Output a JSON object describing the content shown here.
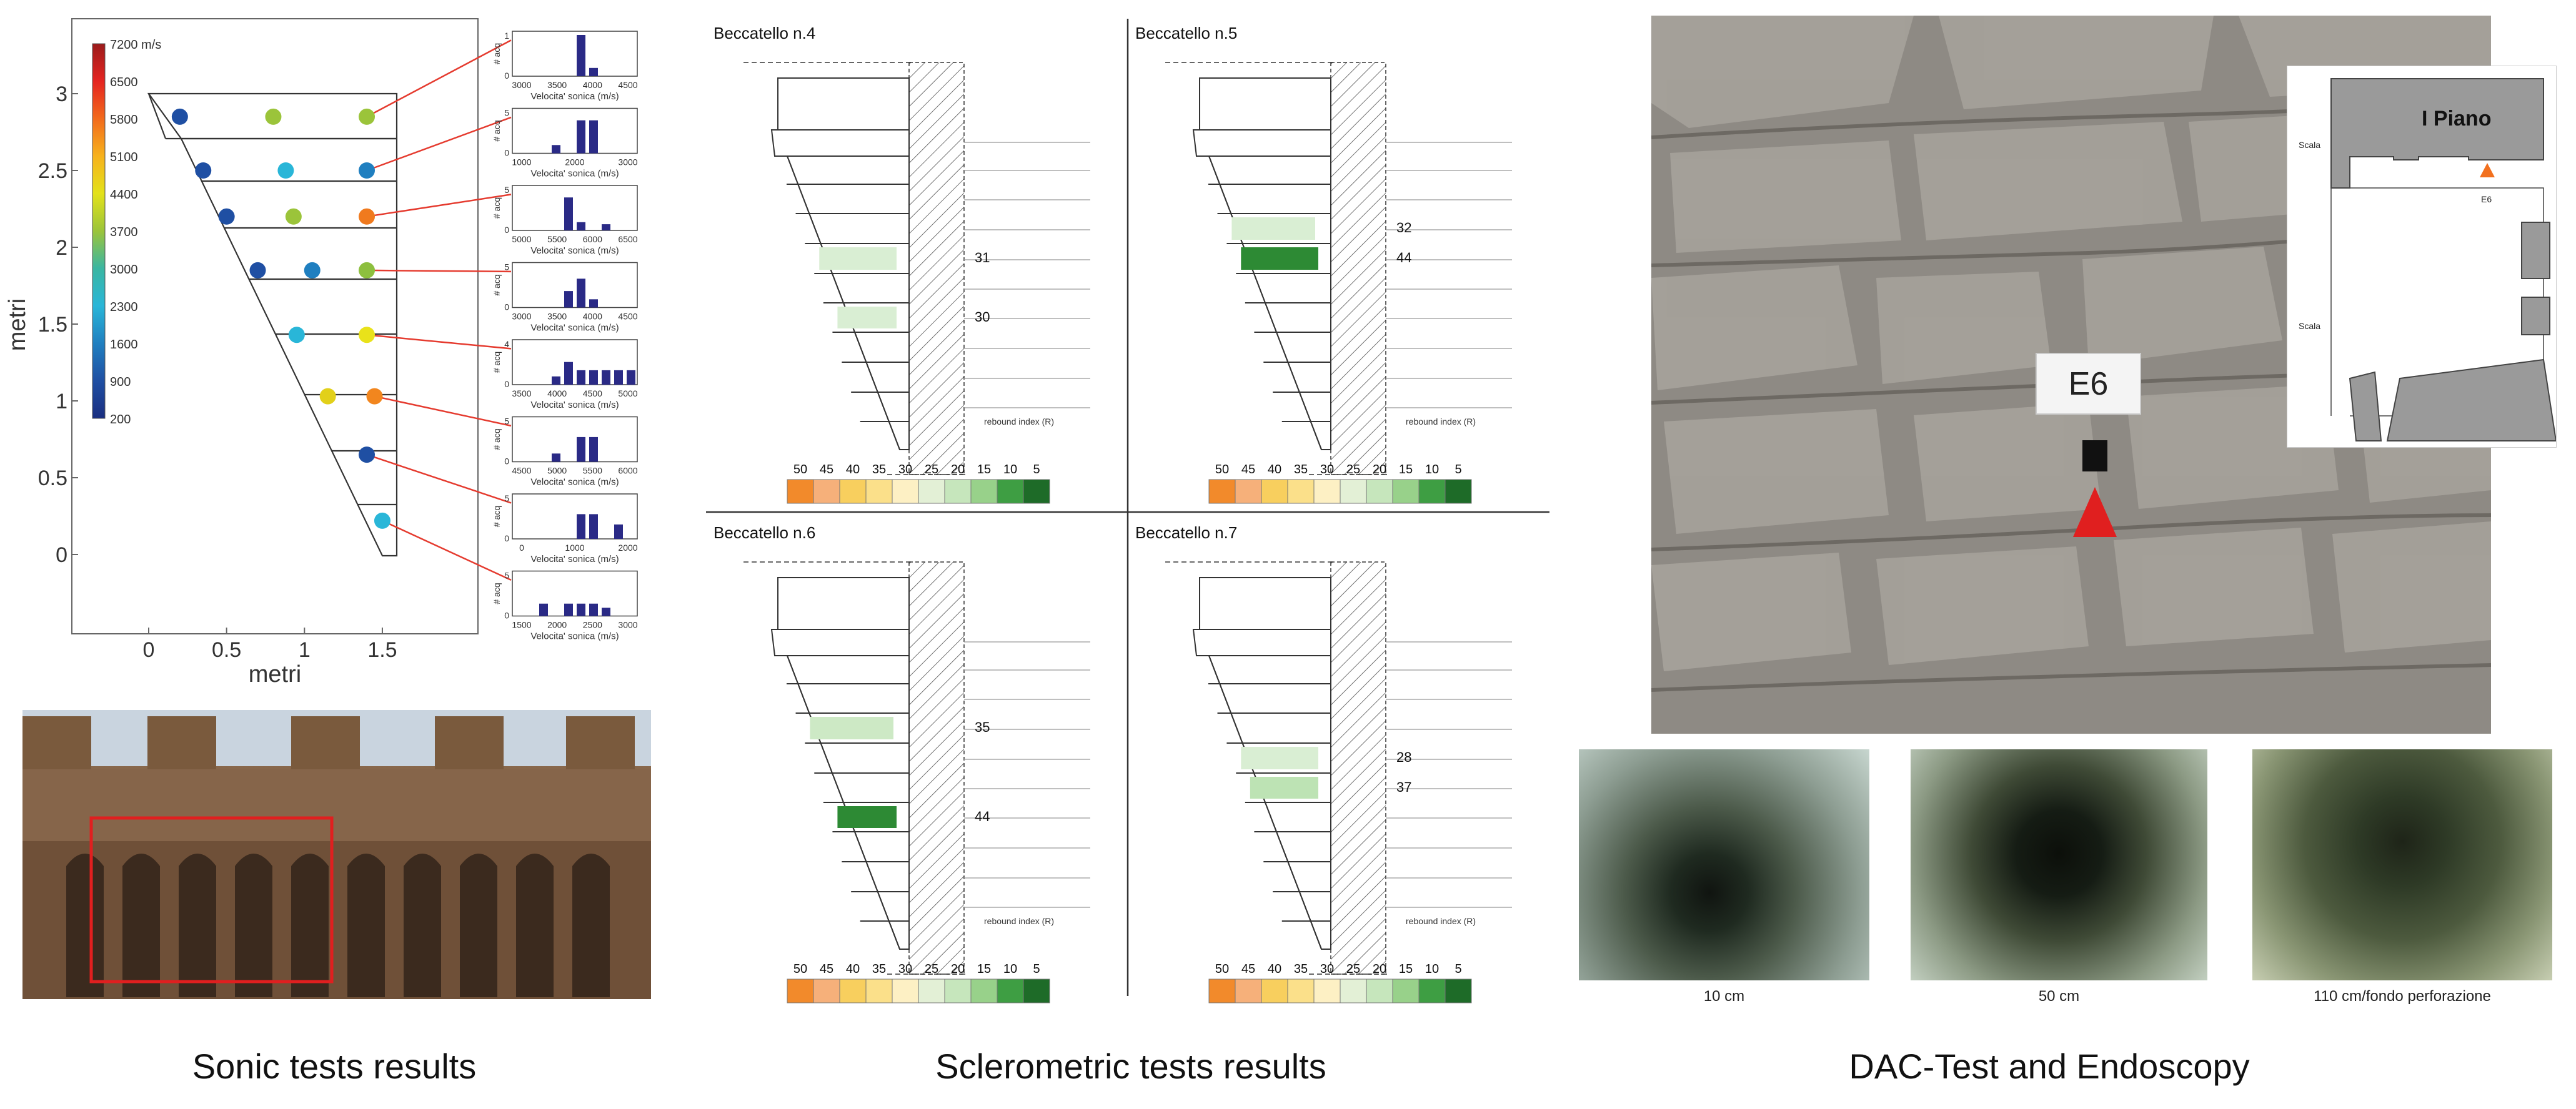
{
  "captions": {
    "sonic": "Sonic tests results",
    "sclerometric": "Sclerometric tests results",
    "dac": "DAC-Test and Endoscopy"
  },
  "sonic_chart": {
    "xlabel": "metri",
    "ylabel": "metri",
    "x_ticks": [
      "0",
      "0.5",
      "1",
      "1.5"
    ],
    "y_ticks": [
      "0",
      "0.5",
      "1",
      "1.5",
      "2",
      "2.5",
      "3"
    ],
    "colorbar_labels": [
      "7200 m/s",
      "6500",
      "5800",
      "5100",
      "4400",
      "3700",
      "3000",
      "2300",
      "1600",
      "900",
      "200"
    ],
    "points": [
      {
        "x": 0.2,
        "y": 2.85,
        "color": "#1f4fa3"
      },
      {
        "x": 0.8,
        "y": 2.85,
        "color": "#9bc43a"
      },
      {
        "x": 1.4,
        "y": 2.85,
        "color": "#9bc43a"
      },
      {
        "x": 0.35,
        "y": 2.5,
        "color": "#1f4fa3"
      },
      {
        "x": 0.88,
        "y": 2.5,
        "color": "#29b6d8"
      },
      {
        "x": 1.4,
        "y": 2.5,
        "color": "#1f7fc0"
      },
      {
        "x": 0.5,
        "y": 2.2,
        "color": "#1f4fa3"
      },
      {
        "x": 0.93,
        "y": 2.2,
        "color": "#9bc43a"
      },
      {
        "x": 1.4,
        "y": 2.2,
        "color": "#f07a1e"
      },
      {
        "x": 0.7,
        "y": 1.85,
        "color": "#1f4fa3"
      },
      {
        "x": 1.05,
        "y": 1.85,
        "color": "#1f7fc0"
      },
      {
        "x": 1.4,
        "y": 1.85,
        "color": "#8dbf3e"
      },
      {
        "x": 0.95,
        "y": 1.43,
        "color": "#29b6d8"
      },
      {
        "x": 1.4,
        "y": 1.43,
        "color": "#e9e21a"
      },
      {
        "x": 1.15,
        "y": 1.03,
        "color": "#e2d01a"
      },
      {
        "x": 1.45,
        "y": 1.03,
        "color": "#f2861e"
      },
      {
        "x": 1.4,
        "y": 0.65,
        "color": "#1f4fa3"
      },
      {
        "x": 1.5,
        "y": 0.22,
        "color": "#29b6d8"
      }
    ],
    "histograms": [
      {
        "ticks": [
          "3000",
          "3500",
          "4000",
          "4500"
        ],
        "ymax": "1",
        "ylabel": "# acq",
        "xlabel": "Velocita' sonica (m/s)",
        "bars": [
          0,
          0,
          0,
          0,
          0,
          1,
          0.2,
          0,
          0,
          0
        ]
      },
      {
        "ticks": [
          "1000",
          "2000",
          "3000"
        ],
        "ymax": "5",
        "ylabel": "# acq",
        "xlabel": "Velocita' sonica (m/s)",
        "bars": [
          0,
          0,
          0,
          0.2,
          0,
          0.8,
          0.8,
          0,
          0,
          0
        ]
      },
      {
        "ticks": [
          "5000",
          "5500",
          "6000",
          "6500"
        ],
        "ymax": "5",
        "ylabel": "# acq",
        "xlabel": "Velocita' sonica (m/s)",
        "bars": [
          0,
          0,
          0,
          0,
          0.8,
          0.2,
          0,
          0.15,
          0,
          0
        ]
      },
      {
        "ticks": [
          "3000",
          "3500",
          "4000",
          "4500"
        ],
        "ymax": "5",
        "ylabel": "# acq",
        "xlabel": "Velocita' sonica (m/s)",
        "bars": [
          0,
          0,
          0,
          0,
          0.4,
          0.7,
          0.2,
          0,
          0,
          0
        ]
      },
      {
        "ticks": [
          "3500",
          "4000",
          "4500",
          "5000"
        ],
        "ymax": "4",
        "ylabel": "# acq",
        "xlabel": "Velocita' sonica (m/s)",
        "bars": [
          0,
          0,
          0,
          0.2,
          0.55,
          0.35,
          0.35,
          0.35,
          0.35,
          0.35
        ]
      },
      {
        "ticks": [
          "4500",
          "5000",
          "5500",
          "6000"
        ],
        "ymax": "5",
        "ylabel": "# acq",
        "xlabel": "Velocita' sonica (m/s)",
        "bars": [
          0,
          0,
          0,
          0.2,
          0,
          0.6,
          0.6,
          0,
          0,
          0
        ]
      },
      {
        "ticks": [
          "0",
          "1000",
          "2000"
        ],
        "ymax": "5",
        "ylabel": "# acq",
        "xlabel": "Velocita' sonica (m/s)",
        "bars": [
          0,
          0,
          0,
          0,
          0,
          0.6,
          0.6,
          0,
          0.35,
          0
        ]
      },
      {
        "ticks": [
          "1500",
          "2000",
          "2500",
          "3000"
        ],
        "ymax": "5",
        "ylabel": "# acq",
        "xlabel": "Velocita' sonica (m/s)",
        "bars": [
          0,
          0,
          0.3,
          0,
          0.3,
          0.3,
          0.3,
          0.2,
          0,
          0
        ]
      }
    ],
    "colors": {
      "colorbar": [
        "#9b1b1b",
        "#e52420",
        "#f26a1c",
        "#f7b21c",
        "#e3e21a",
        "#9bc43a",
        "#3ab6a2",
        "#29b6d8",
        "#1f7fc0",
        "#1f4fa3",
        "#1a2e80"
      ],
      "hist_bar": "#2a2a86",
      "leader": "#e53b2f"
    }
  },
  "sclerometric": {
    "panels": [
      {
        "title": "Beccatello n.4",
        "values": [
          "31",
          "30"
        ],
        "rebound": "rebound index (R)",
        "cells": [
          {
            "row": 4,
            "shade": "#d9eed3"
          },
          {
            "row": 6,
            "shade": "#d9eed3"
          }
        ]
      },
      {
        "title": "Beccatello n.5",
        "values": [
          "32",
          "44"
        ],
        "rebound": "rebound index (R)",
        "cells": [
          {
            "row": 3,
            "shade": "#d9eed3"
          },
          {
            "row": 4,
            "shade": "#2d8a34"
          }
        ]
      },
      {
        "title": "Beccatello n.6",
        "values": [
          "35",
          "44"
        ],
        "rebound": "rebound index (R)",
        "cells": [
          {
            "row": 3,
            "shade": "#cde9c5"
          },
          {
            "row": 6,
            "shade": "#2d8a34"
          }
        ]
      },
      {
        "title": "Beccatello n.7",
        "values": [
          "28",
          "37"
        ],
        "rebound": "rebound index (R)",
        "cells": [
          {
            "row": 4,
            "shade": "#d9eed3"
          },
          {
            "row": 5,
            "shade": "#bde3b4"
          }
        ]
      }
    ],
    "scale_labels": [
      "50",
      "45",
      "40",
      "35",
      "30",
      "25",
      "20",
      "15",
      "10",
      "5"
    ],
    "scale_colors": [
      "#f28a2b",
      "#f6b07a",
      "#f8cf5e",
      "#fbe08a",
      "#fdf0c4",
      "#e3f0d6",
      "#c6e6bc",
      "#98d18a",
      "#3e9e43",
      "#1e6b28"
    ]
  },
  "dac": {
    "marker_label": "E6",
    "plan_title": "I Piano",
    "plan_labels": [
      "Scala",
      "Scala",
      "E6"
    ],
    "endoscopy_labels": [
      "10 cm",
      "50 cm",
      "110 cm/fondo perforazione"
    ]
  }
}
